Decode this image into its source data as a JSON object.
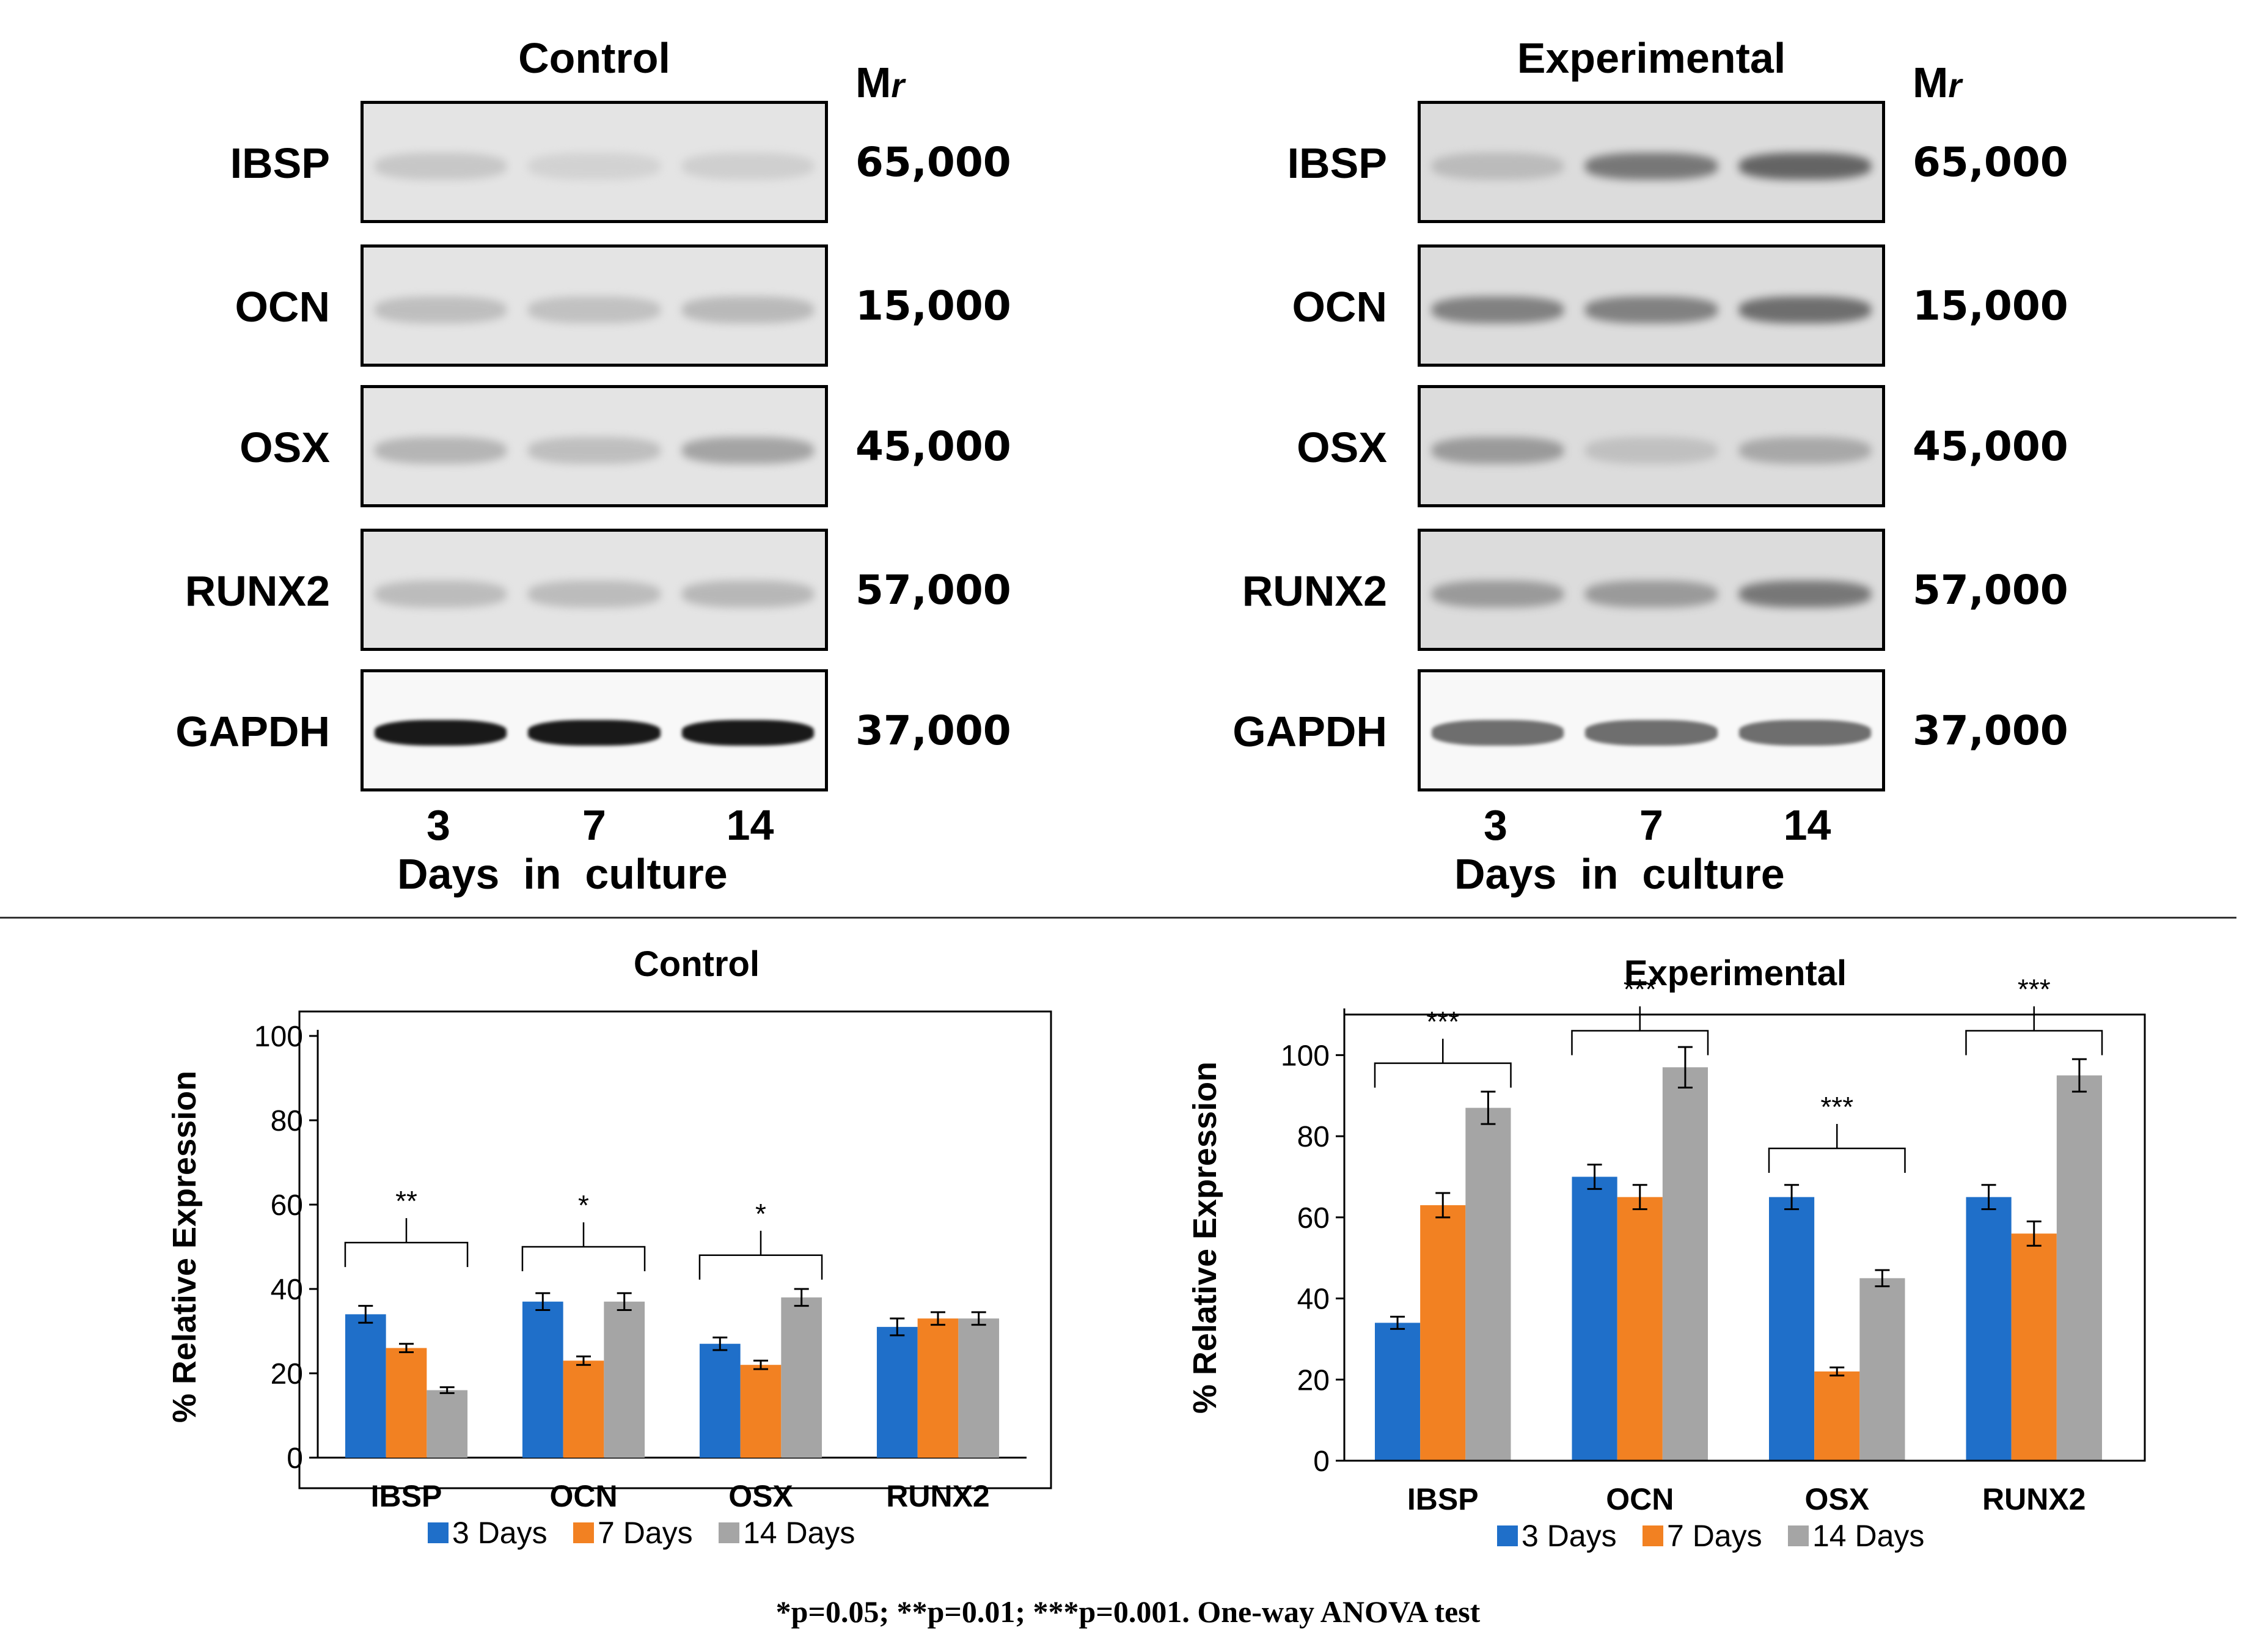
{
  "blots": [
    {
      "title": "Control",
      "mr_label": "M",
      "mr_sub": "r",
      "rows": [
        {
          "protein": "IBSP",
          "mw": "65,000",
          "bands": [
            0.22,
            0.1,
            0.14
          ]
        },
        {
          "protein": "OCN",
          "mw": "15,000",
          "bands": [
            0.3,
            0.28,
            0.34
          ]
        },
        {
          "protein": "OSX",
          "mw": "45,000",
          "bands": [
            0.38,
            0.3,
            0.5
          ]
        },
        {
          "protein": "RUNX2",
          "mw": "57,000",
          "bands": [
            0.32,
            0.32,
            0.36
          ]
        },
        {
          "protein": "GAPDH",
          "mw": "37,000",
          "bands": [
            1.0,
            1.0,
            1.0
          ]
        }
      ],
      "lanes": [
        "3",
        "7",
        "14"
      ],
      "lane_caption": "Days  in  culture"
    },
    {
      "title": "Experimental",
      "mr_label": "M",
      "mr_sub": "r",
      "rows": [
        {
          "protein": "IBSP",
          "mw": "65,000",
          "bands": [
            0.3,
            0.75,
            0.85
          ]
        },
        {
          "protein": "OCN",
          "mw": "15,000",
          "bands": [
            0.7,
            0.7,
            0.8
          ]
        },
        {
          "protein": "OSX",
          "mw": "45,000",
          "bands": [
            0.55,
            0.25,
            0.45
          ]
        },
        {
          "protein": "RUNX2",
          "mw": "57,000",
          "bands": [
            0.55,
            0.55,
            0.75
          ]
        },
        {
          "protein": "GAPDH",
          "mw": "37,000",
          "bands": [
            0.65,
            0.6,
            0.65
          ]
        }
      ],
      "lanes": [
        "3",
        "7",
        "14"
      ],
      "lane_caption": "Days  in  culture"
    }
  ],
  "chart_data": [
    {
      "type": "bar",
      "title": "Control",
      "ylabel": "% Relative Expression",
      "ylim": [
        0,
        100
      ],
      "yticks": [
        0,
        20,
        40,
        60,
        80,
        100
      ],
      "categories": [
        "IBSP",
        "OCN",
        "OSX",
        "RUNX2"
      ],
      "series": [
        {
          "name": "3 Days",
          "color": "#1f6fc9",
          "values": [
            34,
            37,
            27,
            31
          ],
          "errors": [
            2,
            2,
            1.5,
            2
          ]
        },
        {
          "name": "7 Days",
          "color": "#f28122",
          "values": [
            26,
            23,
            22,
            33
          ],
          "errors": [
            1,
            1,
            1,
            1.5
          ]
        },
        {
          "name": "14 Days",
          "color": "#a5a5a5",
          "values": [
            16,
            37,
            38,
            33
          ],
          "errors": [
            0.7,
            2,
            2,
            1.5
          ]
        }
      ],
      "significance": [
        {
          "label": "**",
          "category": "IBSP",
          "level": 51
        },
        {
          "label": "*",
          "category": "OCN",
          "level": 50
        },
        {
          "label": "*",
          "category": "OSX",
          "level": 48
        }
      ],
      "legend": "bottom"
    },
    {
      "type": "bar",
      "title": "Experimental",
      "ylabel": "% Relative Expression",
      "ylim": [
        0,
        110
      ],
      "yticks": [
        0,
        20,
        40,
        60,
        80,
        100
      ],
      "categories": [
        "IBSP",
        "OCN",
        "OSX",
        "RUNX2"
      ],
      "series": [
        {
          "name": "3 Days",
          "color": "#1f6fc9",
          "values": [
            34,
            70,
            65,
            65
          ],
          "errors": [
            1.5,
            3,
            3,
            3
          ]
        },
        {
          "name": "7 Days",
          "color": "#f28122",
          "values": [
            63,
            65,
            22,
            56
          ],
          "errors": [
            3,
            3,
            1,
            3
          ]
        },
        {
          "name": "14 Days",
          "color": "#a5a5a5",
          "values": [
            87,
            97,
            45,
            95
          ],
          "errors": [
            4,
            5,
            2,
            4
          ]
        }
      ],
      "significance": [
        {
          "label": "***",
          "category": "IBSP",
          "level": 98
        },
        {
          "label": "***",
          "category": "OCN",
          "level": 106
        },
        {
          "label": "***",
          "category": "OSX",
          "level": 77
        },
        {
          "label": "***",
          "category": "RUNX2",
          "level": 106
        }
      ],
      "legend": "bottom"
    }
  ],
  "footnote": "*p=0.05; **p=0.01; ***p=0.001. One-way ANOVA test"
}
